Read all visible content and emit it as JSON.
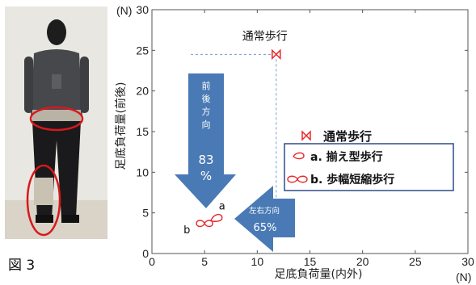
{
  "figure_label": "図 3",
  "chart_data": {
    "type": "scatter",
    "xlabel": "足底負荷量(内外)",
    "ylabel": "足底負荷量(前後)",
    "x_unit": "(N)",
    "y_unit": "(N)",
    "xlim": [
      0,
      30
    ],
    "ylim": [
      0,
      30
    ],
    "x_ticks": [
      "0",
      "5",
      "10",
      "15",
      "20",
      "25",
      "30"
    ],
    "y_ticks": [
      "0",
      "5",
      "10",
      "15",
      "20",
      "25",
      "30"
    ],
    "grid": false,
    "legend_position": "right",
    "series": [
      {
        "name": "通常歩行",
        "marker": "bowtie",
        "color": "#e8282b",
        "points": [
          [
            11.8,
            24.5
          ]
        ]
      },
      {
        "name": "a. 揃え型歩行",
        "marker": "loop",
        "color": "#e8282b",
        "points": [
          [
            6.2,
            4.4
          ]
        ]
      },
      {
        "name": "b. 歩幅短縮歩行",
        "marker": "figure-eight",
        "color": "#e8282b",
        "points": [
          [
            5.0,
            3.7
          ]
        ]
      }
    ],
    "annotations": {
      "normal_label": "通常歩行",
      "point_a": "a",
      "point_b": "b",
      "ap_arrow": {
        "lines": [
          "前",
          "後",
          "方",
          "向"
        ],
        "value": "83",
        "unit": "%"
      },
      "ml_arrow": {
        "text": "左右方向",
        "value": "65%"
      }
    }
  },
  "colors": {
    "arrow": "#4a7ab5",
    "marker": "#e8282b",
    "guide": "#6e9bd6",
    "legend_border": "#2e4b8a"
  }
}
